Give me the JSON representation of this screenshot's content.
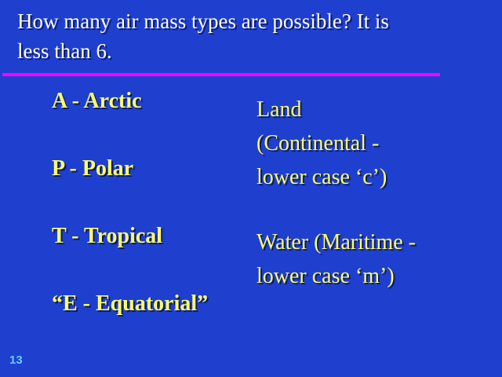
{
  "title": {
    "text": "How many air mass types are possible? It is\n less than 6."
  },
  "air_mass_types": [
    "A - Arctic",
    "P - Polar",
    "T - Tropical",
    "“E - Equatorial”"
  ],
  "source_regions": {
    "land": "Land\n(Continental -\nlower case ‘c’)",
    "water": "Water  (Maritime -\nlower case ‘m’)"
  },
  "slide_number": "13",
  "colors": {
    "background": "#1f3fcf",
    "title_text": "#ffffff",
    "body_text": "#ffff66",
    "divider": "#ff00ff",
    "slide_number": "#66ccff"
  }
}
